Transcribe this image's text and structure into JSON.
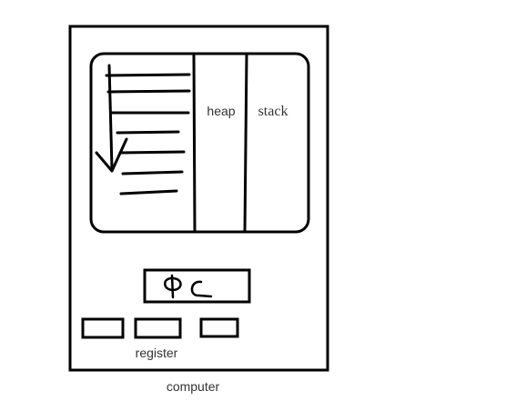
{
  "diagram": {
    "memory": {
      "heap_label": "heap",
      "stack_label": "stack"
    },
    "pc_label": "PC",
    "register_label": "register",
    "computer_label": "computer"
  }
}
